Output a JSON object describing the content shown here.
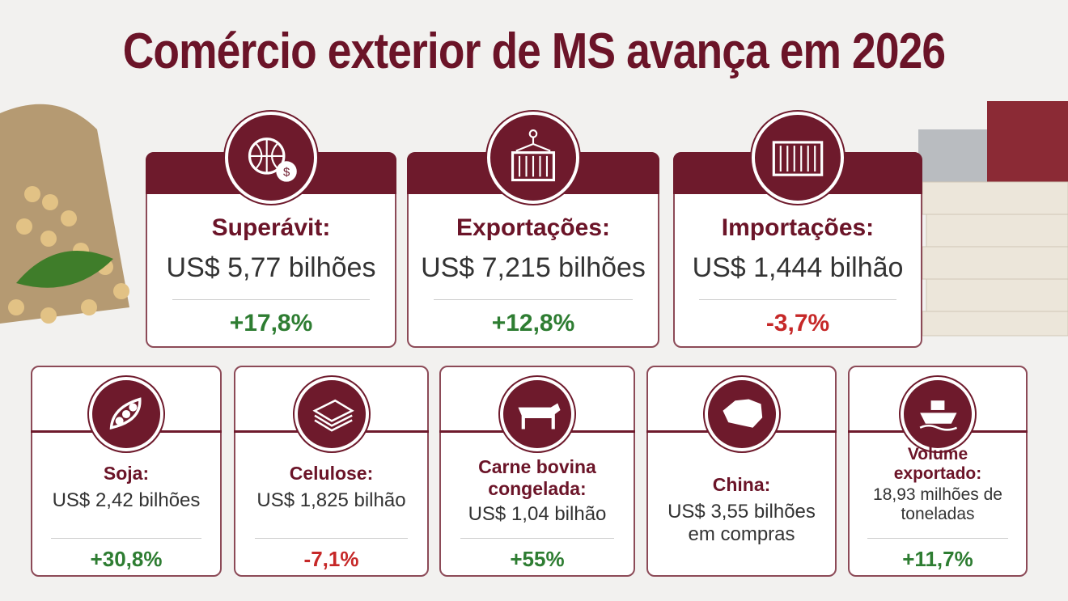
{
  "header": {
    "title": "Comércio exterior de MS avança em 2026"
  },
  "top_cards": [
    {
      "label": "Superávit:",
      "value": "US$ 5,77 bilhões",
      "change": "+17,8%",
      "color": "#2e7d32"
    },
    {
      "label": "Exportações:",
      "value": "US$ 7,215 bilhões",
      "change": "+12,8%",
      "color": "#2e7d32"
    },
    {
      "label": "Importações:",
      "value": "US$ 1,444 bilhão",
      "change": "-3,7%",
      "color": "#c62828"
    }
  ],
  "bottom_cards": [
    {
      "label": "Soja:",
      "value": "US$ 2,42 bilhões",
      "change": "+30,8%",
      "color": "#2e7d32"
    },
    {
      "label": "Celulose:",
      "value": "US$ 1,825 bilhão",
      "change": "-7,1%",
      "color": "#c62828"
    },
    {
      "label": "Carne bovina congelada:",
      "value": "US$ 1,04 bilhão",
      "change": "+55%",
      "color": "#2e7d32"
    },
    {
      "label": "China:",
      "value": "US$ 3,55 bilhões em compras"
    },
    {
      "label": "Volume exportado:",
      "value": "18,93 milhões de toneladas",
      "change": "+11,7%",
      "color": "#2e7d32"
    }
  ]
}
